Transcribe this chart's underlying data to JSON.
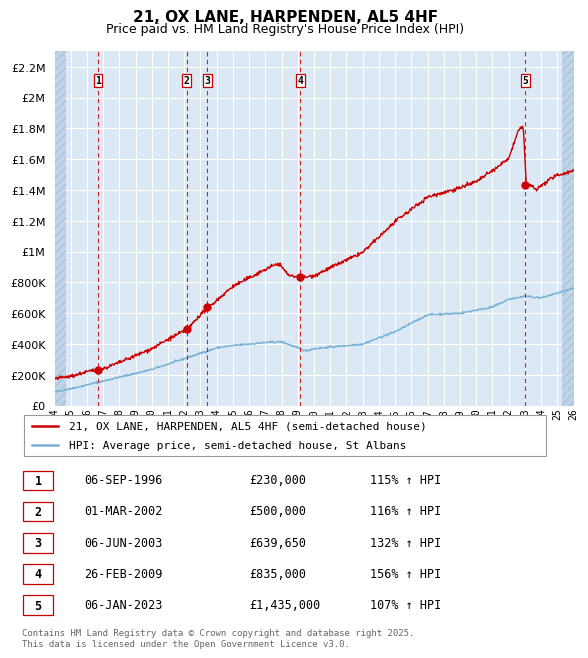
{
  "title": "21, OX LANE, HARPENDEN, AL5 4HF",
  "subtitle": "Price paid vs. HM Land Registry's House Price Index (HPI)",
  "xlim": [
    1994,
    2026
  ],
  "ylim": [
    0,
    2300000
  ],
  "yticks": [
    0,
    200000,
    400000,
    600000,
    800000,
    1000000,
    1200000,
    1400000,
    1600000,
    1800000,
    2000000,
    2200000
  ],
  "bg_color": "#dce9f5",
  "hatch_color": "#c0d4e8",
  "grid_color": "#ffffff",
  "sale_color": "#cc0000",
  "hpi_color": "#7ab3d8",
  "sales": [
    {
      "num": 1,
      "date_str": "06-SEP-1996",
      "year": 1996.68,
      "price": 230000,
      "hpi_pct": "115% ↑ HPI"
    },
    {
      "num": 2,
      "date_str": "01-MAR-2002",
      "year": 2002.16,
      "price": 500000,
      "hpi_pct": "116% ↑ HPI"
    },
    {
      "num": 3,
      "date_str": "06-JUN-2003",
      "year": 2003.43,
      "price": 639650,
      "hpi_pct": "132% ↑ HPI"
    },
    {
      "num": 4,
      "date_str": "26-FEB-2009",
      "year": 2009.15,
      "price": 835000,
      "hpi_pct": "156% ↑ HPI"
    },
    {
      "num": 5,
      "date_str": "06-JAN-2023",
      "year": 2023.02,
      "price": 1435000,
      "hpi_pct": "107% ↑ HPI"
    }
  ],
  "legend_sale_label": "21, OX LANE, HARPENDEN, AL5 4HF (semi-detached house)",
  "legend_hpi_label": "HPI: Average price, semi-detached house, St Albans",
  "footnote": "Contains HM Land Registry data © Crown copyright and database right 2025.\nThis data is licensed under the Open Government Licence v3.0.",
  "title_fontsize": 11,
  "subtitle_fontsize": 9,
  "legend_fontsize": 8,
  "table_fontsize": 8.5,
  "footnote_fontsize": 6.5
}
